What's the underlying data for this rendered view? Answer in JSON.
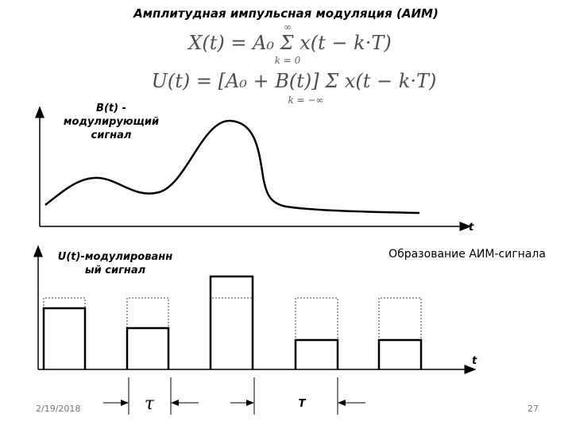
{
  "header": {
    "title": "Амплитудная импульсная модуляция (АИМ)"
  },
  "formulas": [
    {
      "upper_limit": "∞",
      "expression": "X(t) = A₀ Σ x(t − k·T)",
      "lower_limit": "k = 0"
    },
    {
      "expression": "U(t) = [A₀ + B(t)] Σ x(t − k·T)",
      "lower_limit": "k = −∞"
    }
  ],
  "modulating": {
    "label_lines": [
      "B(t) -",
      "модулирующий",
      "сигнал"
    ],
    "axis_label": "t"
  },
  "modulated": {
    "label_lines": [
      "U(t)-модулированн",
      "ый сигнал"
    ],
    "axis_label": "t",
    "caption": "Образование АИМ-сигнала"
  },
  "dimensions": {
    "tau": "τ",
    "period": "T"
  },
  "footer": {
    "date": "2/19/2018",
    "page": "27"
  }
}
